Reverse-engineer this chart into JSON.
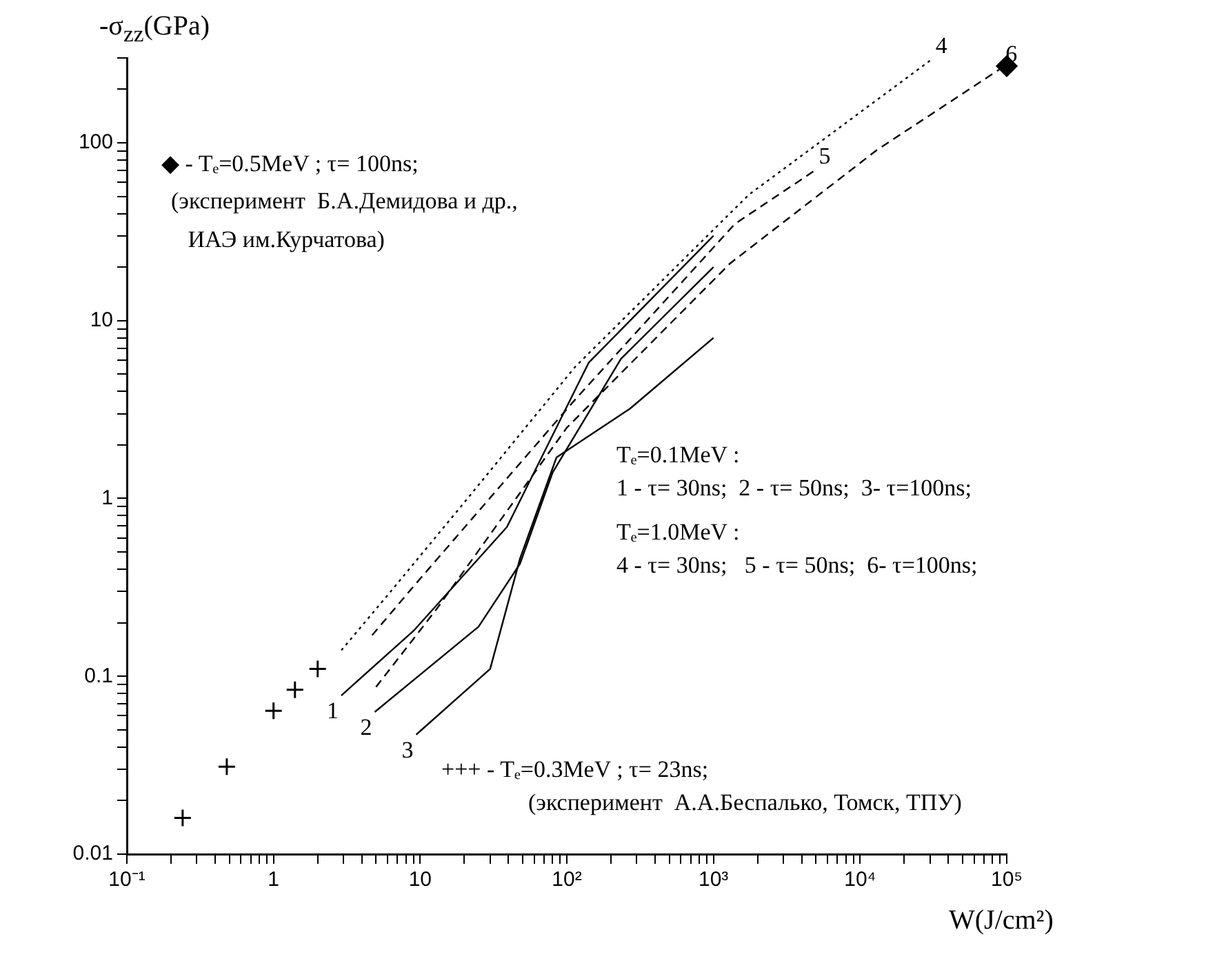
{
  "chart_data": {
    "type": "line",
    "xlabel": "W(J/cm²)",
    "ylabel": "-σ$_{zz}$(GPa)",
    "log": "xy",
    "grid": false,
    "legend": false,
    "xlim": [
      0.1,
      100000
    ],
    "ylim": [
      0.01,
      300
    ],
    "xticks": [
      {
        "value": 0.1,
        "label": "10⁻¹"
      },
      {
        "value": 0.2,
        "label": null
      },
      {
        "value": 0.3,
        "label": null
      },
      {
        "value": 0.4,
        "label": null
      },
      {
        "value": 0.5,
        "label": null
      },
      {
        "value": 0.6,
        "label": null
      },
      {
        "value": 0.7,
        "label": null
      },
      {
        "value": 0.8,
        "label": null
      },
      {
        "value": 0.9,
        "label": null
      },
      1,
      {
        "value": 2,
        "label": null
      },
      {
        "value": 3,
        "label": null
      },
      {
        "value": 4,
        "label": null
      },
      {
        "value": 5,
        "label": null
      },
      {
        "value": 6,
        "label": null
      },
      {
        "value": 7,
        "label": null
      },
      {
        "value": 8,
        "label": null
      },
      {
        "value": 9,
        "label": null
      },
      10,
      {
        "value": 20,
        "label": null
      },
      {
        "value": 30,
        "label": null
      },
      {
        "value": 40,
        "label": null
      },
      {
        "value": 50,
        "label": null
      },
      {
        "value": 60,
        "label": null
      },
      {
        "value": 70,
        "label": null
      },
      {
        "value": 80,
        "label": null
      },
      {
        "value": 90,
        "label": null
      },
      {
        "value": 100,
        "label": "10²"
      },
      {
        "value": 200,
        "label": null
      },
      {
        "value": 300,
        "label": null
      },
      {
        "value": 400,
        "label": null
      },
      {
        "value": 500,
        "label": null
      },
      {
        "value": 600,
        "label": null
      },
      {
        "value": 700,
        "label": null
      },
      {
        "value": 800,
        "label": null
      },
      {
        "value": 900,
        "label": null
      },
      {
        "value": 1000,
        "label": "10³"
      },
      {
        "value": 2000,
        "label": null
      },
      {
        "value": 3000,
        "label": null
      },
      {
        "value": 4000,
        "label": null
      },
      {
        "value": 5000,
        "label": null
      },
      {
        "value": 6000,
        "label": null
      },
      {
        "value": 7000,
        "label": null
      },
      {
        "value": 8000,
        "label": null
      },
      {
        "value": 9000,
        "label": null
      },
      {
        "value": 10000,
        "label": "10⁴"
      },
      {
        "value": 20000,
        "label": null
      },
      {
        "value": 30000,
        "label": null
      },
      {
        "value": 40000,
        "label": null
      },
      {
        "value": 50000,
        "label": null
      },
      {
        "value": 60000,
        "label": null
      },
      {
        "value": 70000,
        "label": null
      },
      {
        "value": 80000,
        "label": null
      },
      {
        "value": 90000,
        "label": null
      },
      {
        "value": 100000,
        "label": "10⁵"
      }
    ],
    "yticks": [
      0.01,
      {
        "value": 0.02,
        "label": null
      },
      {
        "value": 0.03,
        "label": null
      },
      {
        "value": 0.04,
        "label": null
      },
      {
        "value": 0.05,
        "label": null
      },
      {
        "value": 0.06,
        "label": null
      },
      {
        "value": 0.07,
        "label": null
      },
      {
        "value": 0.08,
        "label": null
      },
      {
        "value": 0.09,
        "label": null
      },
      0.1,
      {
        "value": 0.2,
        "label": null
      },
      {
        "value": 0.3,
        "label": null
      },
      {
        "value": 0.4,
        "label": null
      },
      {
        "value": 0.5,
        "label": null
      },
      {
        "value": 0.6,
        "label": null
      },
      {
        "value": 0.7,
        "label": null
      },
      {
        "value": 0.8,
        "label": null
      },
      {
        "value": 0.9,
        "label": null
      },
      1,
      {
        "value": 2,
        "label": null
      },
      {
        "value": 3,
        "label": null
      },
      {
        "value": 4,
        "label": null
      },
      {
        "value": 5,
        "label": null
      },
      {
        "value": 6,
        "label": null
      },
      {
        "value": 7,
        "label": null
      },
      {
        "value": 8,
        "label": null
      },
      {
        "value": 9,
        "label": null
      },
      10,
      {
        "value": 20,
        "label": null
      },
      {
        "value": 30,
        "label": null
      },
      {
        "value": 40,
        "label": null
      },
      {
        "value": 50,
        "label": null
      },
      {
        "value": 60,
        "label": null
      },
      {
        "value": 70,
        "label": null
      },
      {
        "value": 80,
        "label": null
      },
      {
        "value": 90,
        "label": null
      },
      100,
      {
        "value": 200,
        "label": null
      },
      {
        "value": 300,
        "label": null
      }
    ],
    "series": [
      {
        "color": "#000000",
        "line_style": "solid",
        "marker": "none",
        "x": [
          2.9,
          9,
          39,
          141,
          1000
        ],
        "values": [
          0.078,
          0.18,
          0.69,
          5.8,
          30
        ]
      },
      {
        "color": "#000000",
        "line_style": "solid",
        "marker": "none",
        "x": [
          4.9,
          25,
          48,
          80,
          234,
          1000
        ],
        "values": [
          0.063,
          0.19,
          0.43,
          1.4,
          6.1,
          20
        ]
      },
      {
        "color": "#000000",
        "line_style": "solid",
        "marker": "none",
        "x": [
          9.4,
          30,
          48,
          85,
          270,
          1000
        ],
        "values": [
          0.047,
          0.11,
          0.46,
          1.7,
          3.2,
          8
        ]
      },
      {
        "color": "#000000",
        "line_style": "dotted",
        "marker": "none",
        "x": [
          2.9,
          6.3,
          20,
          114,
          1740,
          30000
        ],
        "values": [
          0.14,
          0.3,
          0.95,
          5.5,
          51,
          290
        ]
      },
      {
        "color": "#000000",
        "line_style": "dashed",
        "marker": "none",
        "x": [
          4.7,
          9,
          114,
          1400,
          4800
        ],
        "values": [
          0.17,
          0.32,
          3.6,
          35,
          69
        ]
      },
      {
        "color": "#000000",
        "line_style": "dashed",
        "marker": "none",
        "x": [
          5,
          13,
          100,
          1300,
          13000,
          90000
        ],
        "values": [
          0.087,
          0.24,
          2.5,
          21,
          91,
          260
        ]
      },
      {
        "type": "scatter",
        "color": "#000000",
        "marker": "cross",
        "x": [
          0.24,
          0.48,
          1,
          1.4,
          2
        ],
        "values": [
          0.016,
          0.031,
          0.064,
          0.084,
          0.11
        ]
      },
      {
        "type": "scatter",
        "color": "#000000",
        "marker": "diamond",
        "x": [
          100000
        ],
        "values": [
          270
        ]
      }
    ],
    "annotations": [
      "◆ - Tₑ=0.5MeV ; τ= 100ns;",
      "(эксперимент  Б.А.Демидова и др.,",
      " ИАЭ им.Курчатова)",
      "Tₑ=0.1MeV :",
      "1 - τ= 30ns;  2 - τ= 50ns;  3- τ=100ns;",
      "Tₑ=1.0MeV :",
      "4 - τ= 30ns;   5 - τ= 50ns;  6- τ=100ns;",
      "+++ - Tₑ=0.3MeV ; τ= 23ns;",
      "(эксперимент  А.А.Беспалько, Томск, ТПУ)",
      {
        "text": "1",
        "x": 2.9,
        "y": 0.078
      },
      {
        "text": "2",
        "x": 4.9,
        "y": 0.063
      },
      {
        "text": "3",
        "x": 9.4,
        "y": 0.047
      },
      {
        "text": "4",
        "x": 30000,
        "y": 290
      },
      {
        "text": "5",
        "x": 4800,
        "y": 69
      },
      {
        "text": "6",
        "x": 90000,
        "y": 260
      }
    ]
  }
}
